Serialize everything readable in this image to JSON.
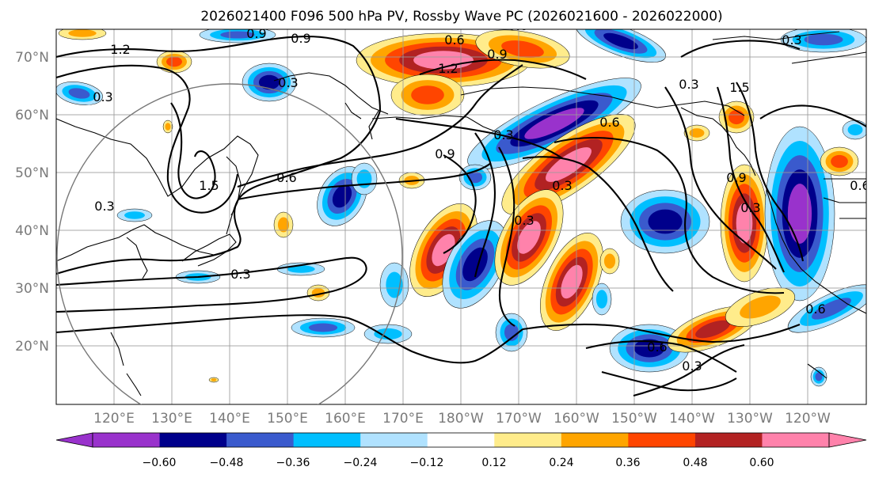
{
  "title": "2026021400 F096 500 hPa PV, Rossby Wave PC (2026021600 - 2026022000)",
  "map": {
    "projection": "PlateCarree",
    "lon_labels": [
      "120°E",
      "130°E",
      "140°E",
      "150°E",
      "160°E",
      "170°E",
      "180°W",
      "170°W",
      "160°W",
      "150°W",
      "140°W",
      "130°W",
      "120°W"
    ],
    "lat_labels": [
      "70°N",
      "60°N",
      "50°N",
      "40°N",
      "30°N",
      "20°N"
    ]
  },
  "colorbar": {
    "colors": [
      "#9932cc",
      "#00008b",
      "#3a5acd",
      "#00bfff",
      "#b0e2ff",
      "#ffffff",
      "#ffec8b",
      "#ffa500",
      "#ff4500",
      "#b22222",
      "#ff82ab"
    ],
    "ticks": [
      "−0.60",
      "−0.48",
      "−0.36",
      "−0.24",
      "−0.12",
      "0.12",
      "0.24",
      "0.36",
      "0.48",
      "0.60"
    ],
    "extend": "both"
  },
  "contour_labels": [
    "1.2",
    "0.9",
    "0.3",
    "0.6",
    "0.9",
    "1.2",
    "0.6",
    "0.3",
    "1.5",
    "0.9",
    "1.5",
    "0.3",
    "0.6",
    "0.9",
    "0.3",
    "0.3",
    "0.3",
    "0.3",
    "0.6",
    "0.3",
    "0.6",
    "0.9",
    "0.6",
    "0.3",
    "0.6",
    "0.3",
    "0.3"
  ]
}
